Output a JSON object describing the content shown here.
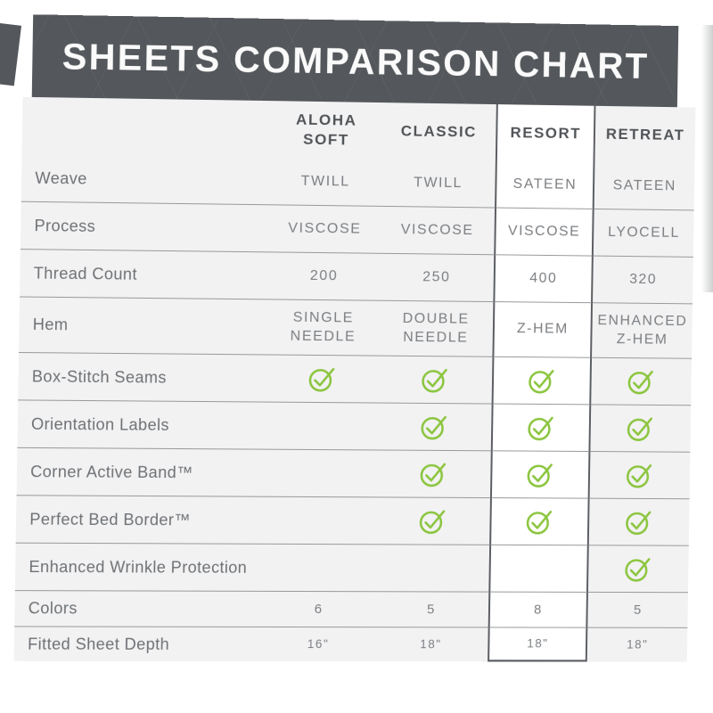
{
  "chart_data": {
    "type": "table",
    "title": "SHEETS COMPARISON CHART",
    "columns": [
      {
        "key": "aloha-soft",
        "label": "ALOHA SOFT",
        "highlighted": false
      },
      {
        "key": "classic",
        "label": "CLASSIC",
        "highlighted": false
      },
      {
        "key": "resort",
        "label": "RESORT",
        "highlighted": true
      },
      {
        "key": "retreat",
        "label": "RETREAT",
        "highlighted": false
      }
    ],
    "rows": [
      {
        "key": "weave",
        "label": "Weave",
        "type": "text",
        "values": [
          "TWILL",
          "TWILL",
          "SATEEN",
          "SATEEN"
        ]
      },
      {
        "key": "process",
        "label": "Process",
        "type": "text",
        "values": [
          "VISCOSE",
          "VISCOSE",
          "VISCOSE",
          "LYOCELL"
        ]
      },
      {
        "key": "thread-count",
        "label": "Thread Count",
        "type": "text",
        "values": [
          "200",
          "250",
          "400",
          "320"
        ]
      },
      {
        "key": "hem",
        "label": "Hem",
        "type": "text",
        "values": [
          "SINGLE NEEDLE",
          "DOUBLE NEEDLE",
          "Z-HEM",
          "ENHANCED Z-HEM"
        ]
      },
      {
        "key": "box-stitch-seams",
        "label": "Box-Stitch Seams",
        "type": "check",
        "values": [
          true,
          true,
          true,
          true
        ]
      },
      {
        "key": "orientation-labels",
        "label": "Orientation Labels",
        "type": "check",
        "values": [
          false,
          true,
          true,
          true
        ]
      },
      {
        "key": "corner-active-band",
        "label": "Corner Active Band™",
        "type": "check",
        "values": [
          false,
          true,
          true,
          true
        ]
      },
      {
        "key": "perfect-bed-border",
        "label": "Perfect Bed Border™",
        "type": "check",
        "values": [
          false,
          true,
          true,
          true
        ]
      },
      {
        "key": "enhanced-wrinkle-protection",
        "label": "Enhanced Wrinkle Protection",
        "type": "check",
        "values": [
          false,
          false,
          false,
          true
        ]
      },
      {
        "key": "colors",
        "label": "Colors",
        "type": "text",
        "values": [
          "6",
          "5",
          "8",
          "5"
        ]
      },
      {
        "key": "fitted-sheet-depth",
        "label": "Fitted Sheet Depth",
        "type": "text",
        "values": [
          "16\"",
          "18\"",
          "18\"",
          "18\""
        ]
      }
    ],
    "legend": null,
    "grid": "horizontal-lines",
    "highlighted_column": "RESORT"
  },
  "icons": {
    "check": "check-circle"
  },
  "colors": {
    "banner_bg": "#54575b",
    "table_bg": "#f2f2f3",
    "highlight_bg": "#ffffff",
    "check_green": "#8bc53e",
    "line": "#97999c",
    "line_dark": "#5b5e62",
    "label_text": "#6e7174",
    "value_text": "#7b7e81",
    "header_text": "#515457",
    "title_text": "#fafafa"
  }
}
